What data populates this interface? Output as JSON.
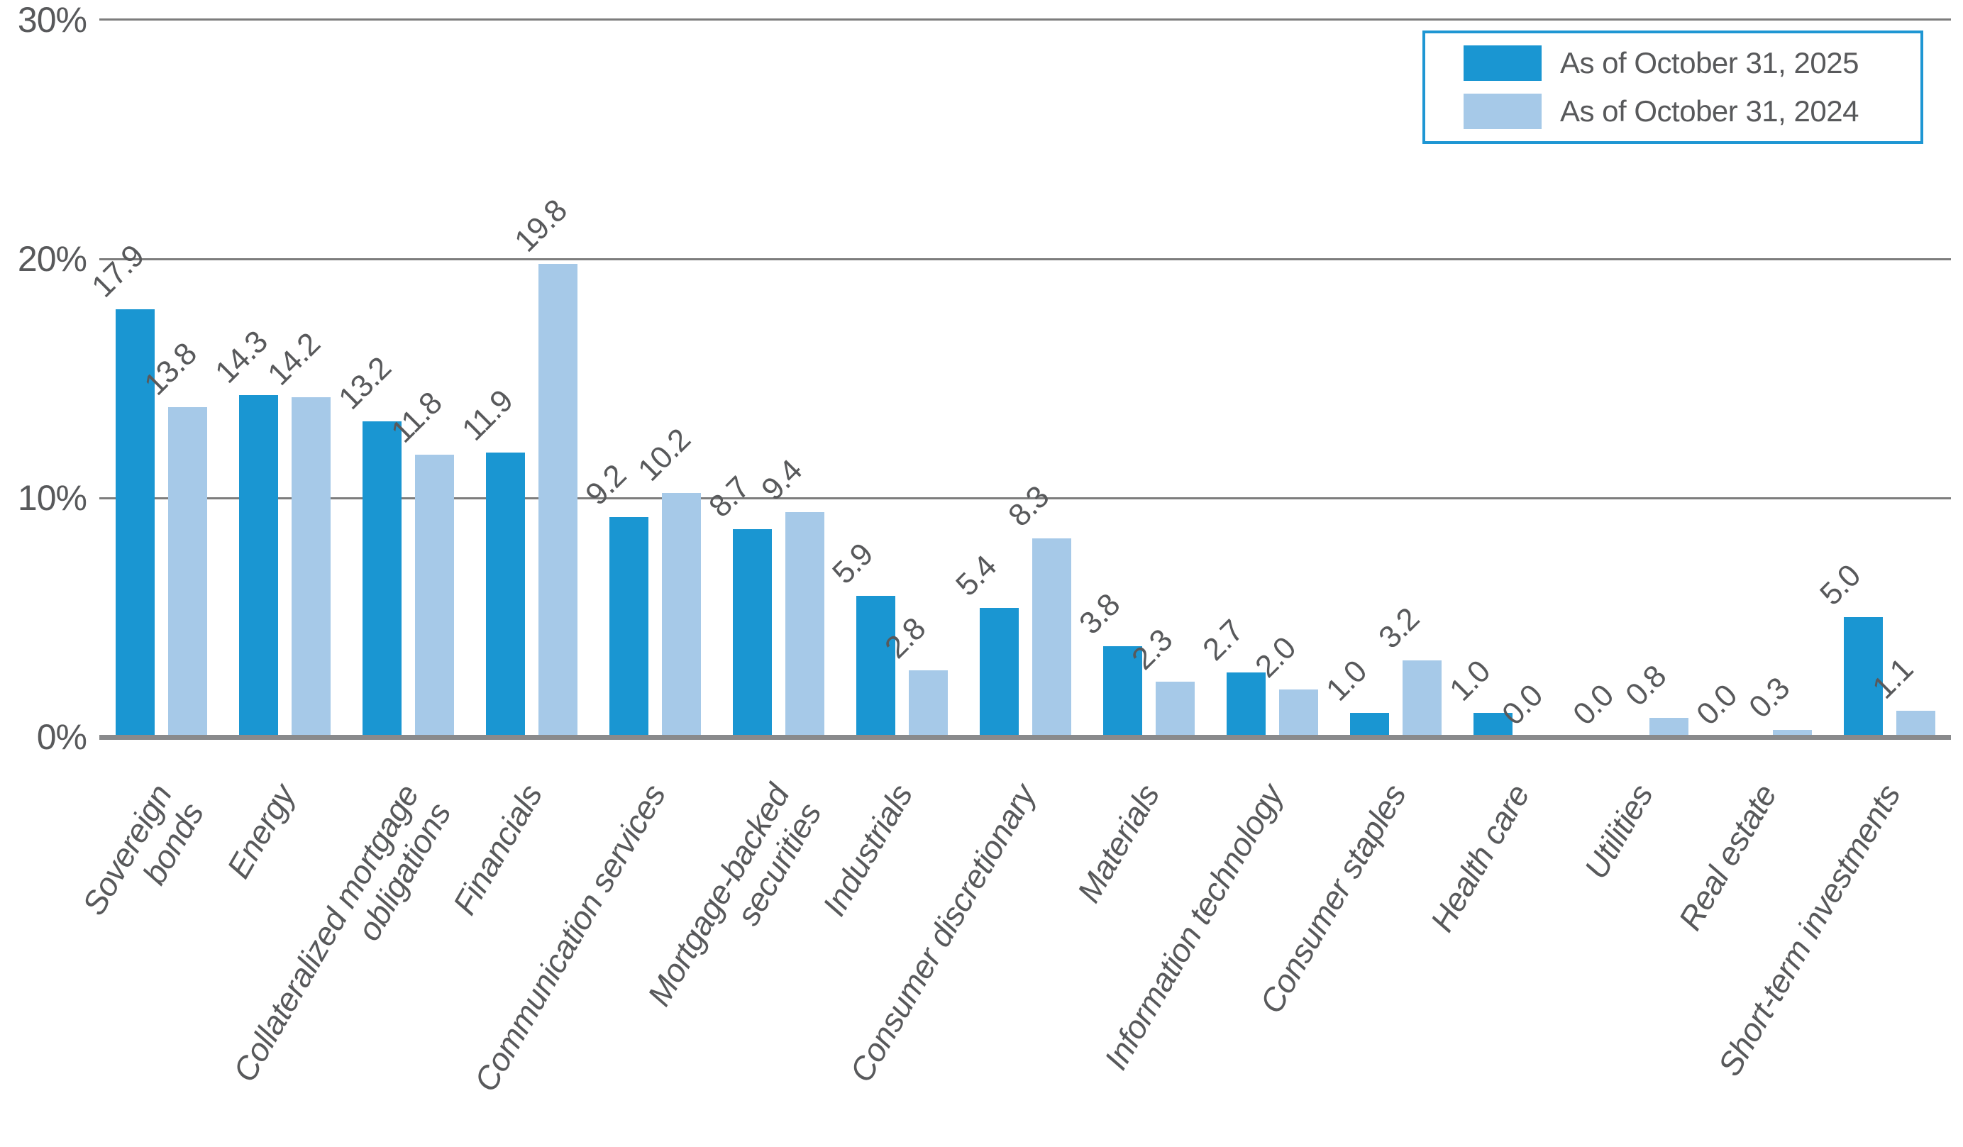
{
  "chart_data": {
    "type": "bar",
    "title": "",
    "xlabel": "",
    "ylabel": "",
    "categories": [
      "Sovereign bonds",
      "Energy",
      "Collateralized mortgage\nobligations",
      "Financials",
      "Communication services",
      "Mortgage-backed\nsecurities",
      "Industrials",
      "Consumer discretionary",
      "Materials",
      "Information technology",
      "Consumer staples",
      "Health care",
      "Utilities",
      "Real estate",
      "Short-term investments"
    ],
    "series": [
      {
        "name": "As of October 31, 2025",
        "color": "#1a96d2",
        "values": [
          17.9,
          14.3,
          13.2,
          11.9,
          9.2,
          8.7,
          5.9,
          5.4,
          3.8,
          2.7,
          1.0,
          1.0,
          0.0,
          0.0,
          5.0
        ]
      },
      {
        "name": "As of October 31, 2024",
        "color": "#a6c9e8",
        "values": [
          13.8,
          14.2,
          11.8,
          19.8,
          10.2,
          9.4,
          2.8,
          8.3,
          2.3,
          2.0,
          3.2,
          0.0,
          0.8,
          0.3,
          1.1
        ]
      }
    ],
    "ylim": [
      0,
      30
    ],
    "yticks": [
      {
        "value": 0,
        "label": "0%"
      },
      {
        "value": 10,
        "label": "10%"
      },
      {
        "value": 20,
        "label": "20%"
      },
      {
        "value": 30,
        "label": "30%"
      }
    ],
    "grid": "horizontal",
    "legend_position": "top-right",
    "bar_value_labels": true,
    "value_label_format": "one-decimal"
  },
  "colors": {
    "bar_2025": "#1a96d2",
    "bar_2024": "#a6c9e8",
    "gridline": "#7d7d7d",
    "axis_line": "#898a8c",
    "text": "#58595b",
    "legend_border": "#1e96d3",
    "background": "#ffffff"
  }
}
